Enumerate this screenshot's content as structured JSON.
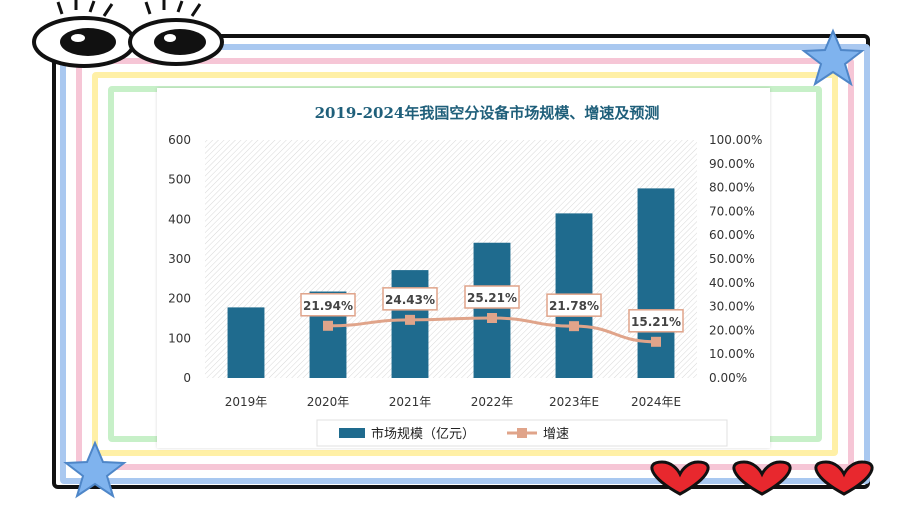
{
  "colors": {
    "bar": "#1f6b8e",
    "line": "#e0a48a",
    "title": "#1f5f7a",
    "label_border": "#e0a48a"
  },
  "chart_data": {
    "type": "bar",
    "title": "2019-2024年我国空分设备市场规模、增速及预测",
    "categories": [
      "2019年",
      "2020年",
      "2021年",
      "2022年",
      "2023年E",
      "2024年E"
    ],
    "series": [
      {
        "name": "市场规模（亿元）",
        "type": "bar",
        "axis": "left",
        "values": [
          178,
          218,
          272,
          341,
          415,
          478
        ]
      },
      {
        "name": "增速",
        "type": "line",
        "axis": "right",
        "values": [
          null,
          21.94,
          24.43,
          25.21,
          21.78,
          15.21
        ]
      }
    ],
    "data_labels": [
      "",
      "21.94%",
      "24.43%",
      "25.21%",
      "21.78%",
      "15.21%"
    ],
    "y_left": {
      "min": 0,
      "max": 600,
      "ticks": [
        "0",
        "100",
        "200",
        "300",
        "400",
        "500",
        "600"
      ]
    },
    "y_right": {
      "min": 0,
      "max": 100,
      "ticks": [
        "0.00%",
        "10.00%",
        "20.00%",
        "30.00%",
        "40.00%",
        "50.00%",
        "60.00%",
        "70.00%",
        "80.00%",
        "90.00%",
        "100.00%"
      ]
    },
    "legend_position": "bottom"
  }
}
